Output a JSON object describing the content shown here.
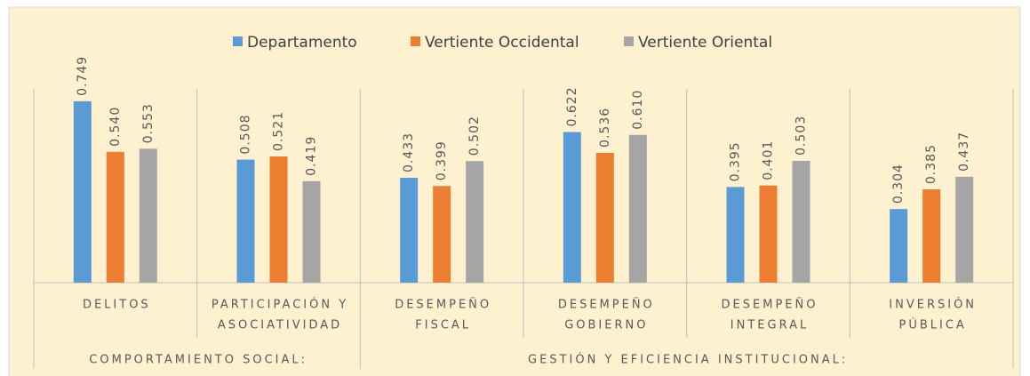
{
  "chart_data": {
    "type": "bar",
    "categories": [
      [
        "DELITOS"
      ],
      [
        "PARTICIPACIÓN Y",
        "ASOCIATIVIDAD"
      ],
      [
        "DESEMPEÑO",
        "FISCAL"
      ],
      [
        "DESEMPEÑO",
        "GOBIERNO"
      ],
      [
        "DESEMPEÑO",
        "INTEGRAL"
      ],
      [
        "INVERSIÓN",
        "PÚBLICA"
      ]
    ],
    "groups": [
      {
        "name": "COMPORTAMIENTO SOCIAL:",
        "span": 2
      },
      {
        "name": "GESTIÓN Y EFICIENCIA INSTITUCIONAL:",
        "span": 4
      }
    ],
    "series": [
      {
        "name": "Departamento",
        "color": "#5b9bd5",
        "values": [
          0.749,
          0.508,
          0.433,
          0.622,
          0.395,
          0.304
        ],
        "value_labels": [
          "0.749",
          "0.508",
          "0.433",
          "0.622",
          "0.395",
          "0.304"
        ]
      },
      {
        "name": "Vertiente Occidental",
        "color": "#ed7d31",
        "values": [
          0.54,
          0.521,
          0.399,
          0.536,
          0.401,
          0.385
        ],
        "value_labels": [
          "0.540",
          "0.521",
          "0.399",
          "0.536",
          "0.401",
          "0.385"
        ]
      },
      {
        "name": "Vertiente Oriental",
        "color": "#a5a5a5",
        "values": [
          0.553,
          0.419,
          0.502,
          0.61,
          0.503,
          0.437
        ],
        "value_labels": [
          "0.553",
          "0.419",
          "0.502",
          "0.610",
          "0.503",
          "0.437"
        ]
      }
    ],
    "ylim": [
      0,
      0.8
    ],
    "legend": "top"
  }
}
